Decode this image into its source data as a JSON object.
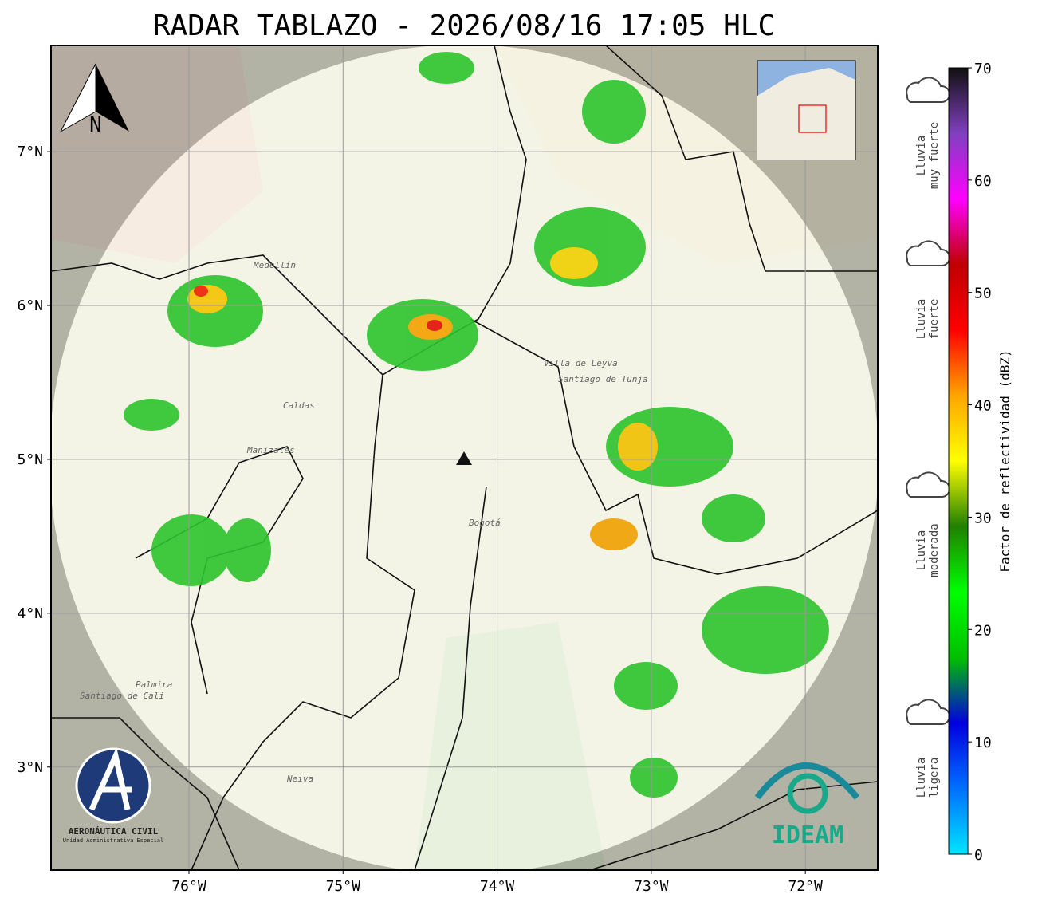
{
  "title": "RADAR TABLAZO - 2026/08/16 17:05 HLC",
  "map": {
    "xlim": [
      -76.895,
      -71.53
    ],
    "ylim": [
      2.33,
      7.69
    ],
    "xticks": [
      {
        "value": -76,
        "label": "76°W"
      },
      {
        "value": -75,
        "label": "75°W"
      },
      {
        "value": -74,
        "label": "74°W"
      },
      {
        "value": -73,
        "label": "73°W"
      },
      {
        "value": -72,
        "label": "72°W"
      }
    ],
    "yticks": [
      {
        "value": 3,
        "label": "3°N"
      },
      {
        "value": 4,
        "label": "4°N"
      },
      {
        "value": 5,
        "label": "5°N"
      },
      {
        "value": 6,
        "label": "6°N"
      },
      {
        "value": 7,
        "label": "7°N"
      }
    ],
    "grid": true,
    "north_label": "N",
    "places": [
      "Medellín",
      "Bogotá",
      "Villa de Leyva",
      "Santiago de Tunja",
      "Palmira",
      "Santiago de Cali",
      "Neiva",
      "Caldas",
      "Manizales"
    ]
  },
  "colorbar": {
    "label": "Factor de reflectividad (dBZ)",
    "lim": [
      0,
      70
    ],
    "ticks": [
      0,
      10,
      20,
      30,
      40,
      50,
      60,
      70
    ],
    "colors": [
      "#00e5ff",
      "#0070ff",
      "#0000e0",
      "#00c000",
      "#00ff00",
      "#208000",
      "#ffff00",
      "#ffa500",
      "#ff0000",
      "#c00000",
      "#ff00ff",
      "#8040c0",
      "#101010"
    ]
  },
  "legend": [
    {
      "lines": [
        "Lluvia",
        "muy fuerte"
      ]
    },
    {
      "lines": [
        "Lluvia",
        "fuerte"
      ]
    },
    {
      "lines": [
        "Lluvia",
        "moderada"
      ]
    },
    {
      "lines": [
        "Lluvia",
        "ligera"
      ]
    }
  ],
  "logos": {
    "aerocivil": "AERONÁUTICA CIVIL",
    "aerocivil_sub": "Unidad Administrativa Especial",
    "ideam": "IDEAM"
  }
}
